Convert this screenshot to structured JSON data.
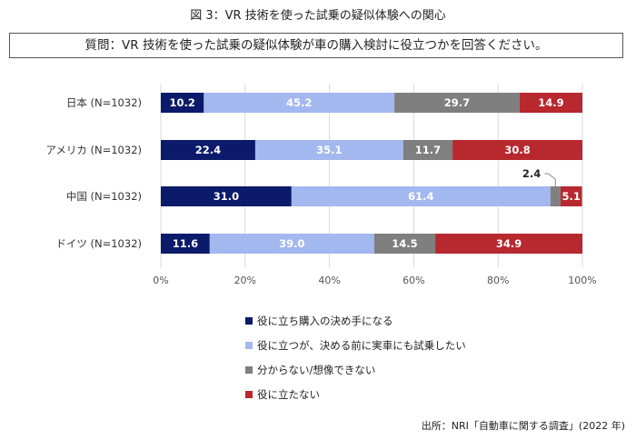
{
  "title": "図 3：VR 技術を使った試乗の疑似体験への関心",
  "question": "質問：VR 技術を使った試乗の疑似体験が車の購入検討に役立つかを回答ください。",
  "source": "出所：NRI「自動車に関する調査」(2022 年)",
  "chart_data": {
    "type": "bar",
    "orientation": "horizontal",
    "stacked": true,
    "categories": [
      "日本 (N=1032)",
      "アメリカ (N=1032)",
      "中国 (N=1032)",
      "ドイツ (N=1032)"
    ],
    "series": [
      {
        "name": "役に立ち購入の決め手になる",
        "color": "#0c1a6b",
        "label_color": "#ffffff",
        "values": [
          10.2,
          22.4,
          31.0,
          11.6
        ]
      },
      {
        "name": "役に立つが、決める前に実車にも試乗したい",
        "color": "#a3b8ef",
        "label_color": "#ffffff",
        "values": [
          45.2,
          35.1,
          61.4,
          39.0
        ]
      },
      {
        "name": "分からない/想像できない",
        "color": "#7f7f7f",
        "label_color": "#ffffff",
        "values": [
          29.7,
          11.7,
          2.4,
          14.5
        ]
      },
      {
        "name": "役に立たない",
        "color": "#b8282f",
        "label_color": "#ffffff",
        "values": [
          14.9,
          30.8,
          5.1,
          34.9
        ]
      }
    ],
    "xlim": [
      0,
      100
    ],
    "x_ticks": [
      "0%",
      "20%",
      "40%",
      "60%",
      "80%",
      "100%"
    ],
    "grid": true,
    "legend_position": "bottom",
    "callouts": [
      {
        "category_index": 2,
        "series_index": 2,
        "label": "2.4"
      }
    ]
  }
}
